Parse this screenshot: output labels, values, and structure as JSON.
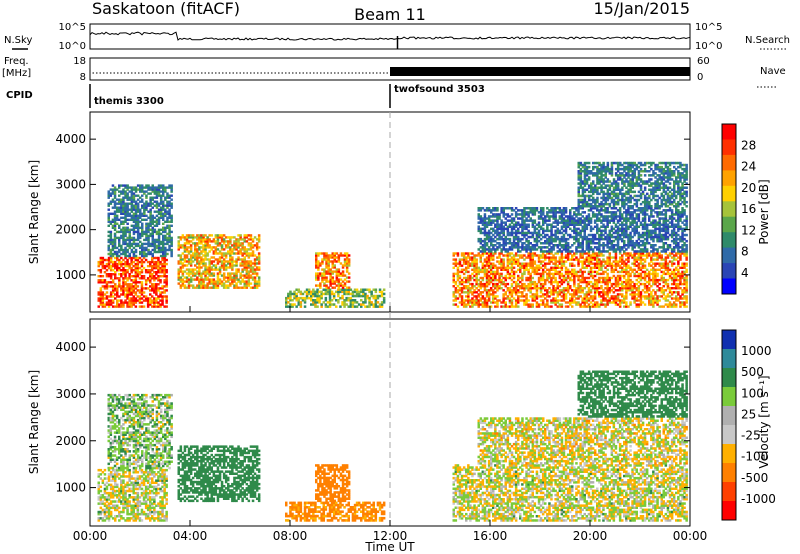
{
  "header": {
    "left": "Saskatoon (fitACF)",
    "center": "Beam 11",
    "right": "15/Jan/2015"
  },
  "strips": {
    "nsky_label": "N.Sky",
    "nsky_ticks": [
      "10^5",
      "10^0"
    ],
    "nsearch_label": "N.Search",
    "nsearch_ticks": [
      "10^5",
      "10^0"
    ],
    "freq_label_1": "Freq.",
    "freq_label_2": "[MHz]",
    "freq_ticks": [
      "18",
      "8"
    ],
    "nave_label": "Nave",
    "nave_ticks": [
      "60",
      "0"
    ],
    "cpid_label": "CPID",
    "cpid_1": "themis 3300",
    "cpid_2": "twofsound 3503"
  },
  "colors": {
    "power": [
      "#0000ff",
      "#2a45b5",
      "#2f6aa8",
      "#2f8a6a",
      "#5aa64a",
      "#a6c33a",
      "#ffd000",
      "#ffa200",
      "#ff6a00",
      "#ff3000",
      "#ff0000"
    ],
    "velocity": [
      "#1030b0",
      "#2f8a9a",
      "#2f8a4a",
      "#7acb3a",
      "#b0b0b0",
      "#c8c8c8",
      "#ffb000",
      "#ff8000",
      "#ff4000",
      "#ff0000"
    ]
  },
  "chart_data": [
    {
      "type": "heatmap",
      "ylabel": "Slant Range [km]",
      "yticks": [
        "1000",
        "2000",
        "3000",
        "4000"
      ],
      "ylim": [
        180,
        4600
      ],
      "xlim": [
        0,
        24
      ],
      "colorbar": {
        "label": "Power [dB]",
        "ticks": [
          "4",
          "8",
          "12",
          "16",
          "20",
          "24",
          "28"
        ],
        "range": [
          0,
          30
        ]
      },
      "echo_regions": [
        {
          "t": [
            0.3,
            3.1
          ],
          "r": [
            280,
            1400
          ],
          "value": 26
        },
        {
          "t": [
            0.7,
            3.3
          ],
          "r": [
            1400,
            3000
          ],
          "value": 12
        },
        {
          "t": [
            3.5,
            6.8
          ],
          "r": [
            700,
            1900
          ],
          "value": 22
        },
        {
          "t": [
            7.8,
            11.8
          ],
          "r": [
            280,
            700
          ],
          "value": 18
        },
        {
          "t": [
            9.0,
            10.4
          ],
          "r": [
            700,
            1500
          ],
          "value": 24
        },
        {
          "t": [
            14.5,
            23.9
          ],
          "r": [
            280,
            1500
          ],
          "value": 24
        },
        {
          "t": [
            15.5,
            23.9
          ],
          "r": [
            1500,
            2500
          ],
          "value": 10
        },
        {
          "t": [
            19.5,
            23.9
          ],
          "r": [
            2500,
            3500
          ],
          "value": 12
        }
      ]
    },
    {
      "type": "heatmap",
      "ylabel": "Slant Range [km]",
      "xlabel": "Time UT",
      "yticks": [
        "1000",
        "2000",
        "3000",
        "4000"
      ],
      "xticks": [
        "00:00",
        "04:00",
        "08:00",
        "12:00",
        "16:00",
        "20:00",
        "00:00"
      ],
      "ylim": [
        180,
        4600
      ],
      "xlim": [
        0,
        24
      ],
      "colorbar": {
        "label": "Velocity [m s⁻¹]",
        "ticks": [
          "1000",
          "500",
          "100",
          "25",
          "-25",
          "-100",
          "-500",
          "-1000"
        ],
        "range": [
          -1000,
          1000
        ]
      },
      "echo_regions": [
        {
          "t": [
            0.3,
            3.1
          ],
          "r": [
            280,
            1400
          ],
          "value": 10
        },
        {
          "t": [
            0.7,
            3.3
          ],
          "r": [
            1400,
            3000
          ],
          "value": 60
        },
        {
          "t": [
            3.5,
            6.8
          ],
          "r": [
            700,
            1900
          ],
          "value": 400
        },
        {
          "t": [
            7.8,
            11.8
          ],
          "r": [
            280,
            700
          ],
          "value": -150
        },
        {
          "t": [
            9.0,
            10.4
          ],
          "r": [
            700,
            1500
          ],
          "value": -200
        },
        {
          "t": [
            14.5,
            23.9
          ],
          "r": [
            280,
            1500
          ],
          "value": 5
        },
        {
          "t": [
            15.5,
            23.9
          ],
          "r": [
            1500,
            2500
          ],
          "value": -10
        },
        {
          "t": [
            19.5,
            23.9
          ],
          "r": [
            2500,
            3500
          ],
          "value": 300
        }
      ]
    }
  ]
}
